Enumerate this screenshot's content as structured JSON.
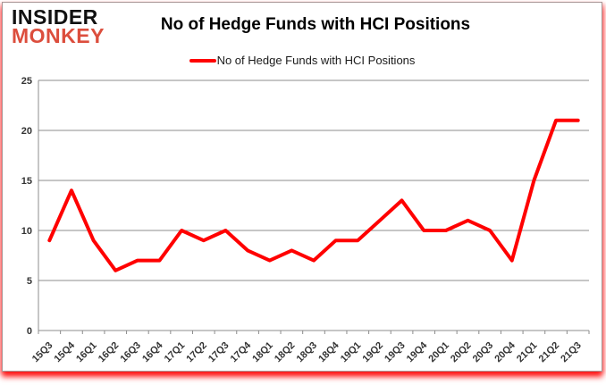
{
  "logo": {
    "line1": "INSIDER",
    "line2": "MONKEY"
  },
  "header": {
    "title": "No of Hedge Funds with HCI Positions"
  },
  "legend": {
    "label": "No of Hedge Funds with HCI Positions",
    "marker_color": "#ff0000"
  },
  "colors": {
    "line": "#ff0000",
    "grid": "#8c8c8c",
    "axis_text": "#333333",
    "logo_accent": "#dc4e3d",
    "bottom_glow": "#ff0000"
  },
  "chart_data": {
    "type": "line",
    "title": "No of Hedge Funds with HCI Positions",
    "xlabel": "",
    "ylabel": "",
    "x": [
      "15Q3",
      "15Q4",
      "16Q1",
      "16Q2",
      "16Q3",
      "16Q4",
      "17Q1",
      "17Q2",
      "17Q3",
      "17Q4",
      "18Q1",
      "18Q2",
      "18Q3",
      "18Q4",
      "19Q1",
      "19Q2",
      "19Q3",
      "19Q4",
      "20Q1",
      "20Q2",
      "20Q3",
      "20Q4",
      "21Q1",
      "21Q2",
      "21Q3"
    ],
    "series": [
      {
        "name": "No of Hedge Funds with HCI Positions",
        "color": "#ff0000",
        "values": [
          9,
          14,
          9,
          6,
          7,
          7,
          10,
          9,
          10,
          8,
          7,
          8,
          7,
          9,
          9,
          11,
          13,
          10,
          10,
          11,
          10,
          7,
          15,
          21,
          21
        ]
      }
    ],
    "ylim": [
      0,
      25
    ],
    "yticks": [
      0,
      5,
      10,
      15,
      20,
      25
    ],
    "grid": true,
    "legend_position": "top-center"
  }
}
